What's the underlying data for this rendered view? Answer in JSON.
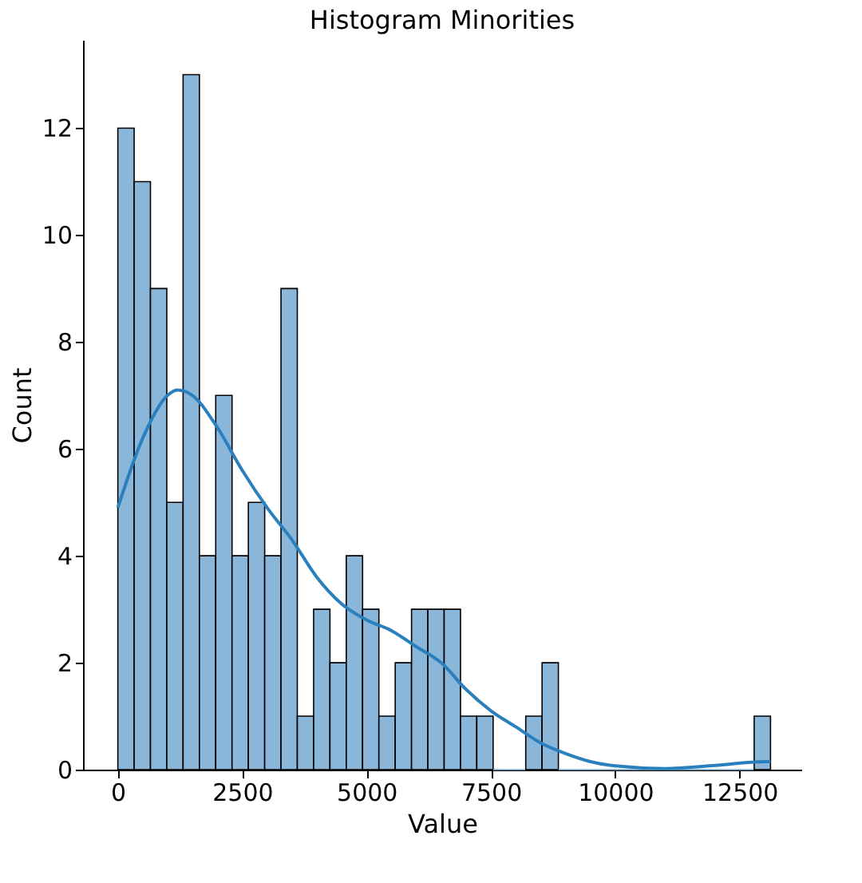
{
  "chart_data": {
    "type": "histogram",
    "title": "Histogram Minorities",
    "xlabel": "Value",
    "ylabel": "Count",
    "bins": [
      0,
      328,
      656,
      984,
      1312,
      1640,
      1968,
      2296,
      2624,
      2952,
      3280,
      3608,
      3936,
      4264,
      4592,
      4920,
      5248,
      5576,
      5904,
      6232,
      6560,
      6888,
      7216,
      7544,
      7872,
      8200,
      8528,
      8856,
      9184,
      9512,
      9840,
      10168,
      10496,
      10824,
      11152,
      11480,
      11808,
      12136,
      12464,
      12792,
      13120
    ],
    "values": [
      12,
      11,
      9,
      5,
      13,
      4,
      7,
      4,
      5,
      4,
      9,
      1,
      3,
      2,
      4,
      3,
      1,
      2,
      3,
      3,
      3,
      1,
      1,
      0,
      0,
      1,
      2,
      0,
      0,
      0,
      0,
      0,
      0,
      0,
      0,
      0,
      0,
      0,
      0,
      1
    ],
    "color": "#8ab6d9",
    "series": [
      {
        "type": "line",
        "color": "#2a7fbd",
        "x": [
          0,
          500,
          1000,
          1200,
          1500,
          2000,
          2500,
          3000,
          3500,
          4000,
          4500,
          5000,
          5500,
          6000,
          6500,
          7000,
          7500,
          8000,
          8500,
          9000,
          9500,
          10000,
          11000,
          12000,
          13000,
          13120
        ],
        "values": [
          4.9,
          6.2,
          7.0,
          7.1,
          7.0,
          6.4,
          5.6,
          4.9,
          4.3,
          3.6,
          3.1,
          2.8,
          2.6,
          2.3,
          2.0,
          1.5,
          1.1,
          0.8,
          0.5,
          0.3,
          0.15,
          0.07,
          0.02,
          0.08,
          0.15,
          0.15
        ]
      }
    ],
    "xlim": [
      -700,
      13740
    ],
    "xticks": [
      0,
      2500,
      5000,
      7500,
      10000,
      12500
    ],
    "ylim": [
      0,
      13.65
    ],
    "yticks": [
      0,
      2,
      4,
      6,
      8,
      10,
      12
    ],
    "grid": false
  }
}
